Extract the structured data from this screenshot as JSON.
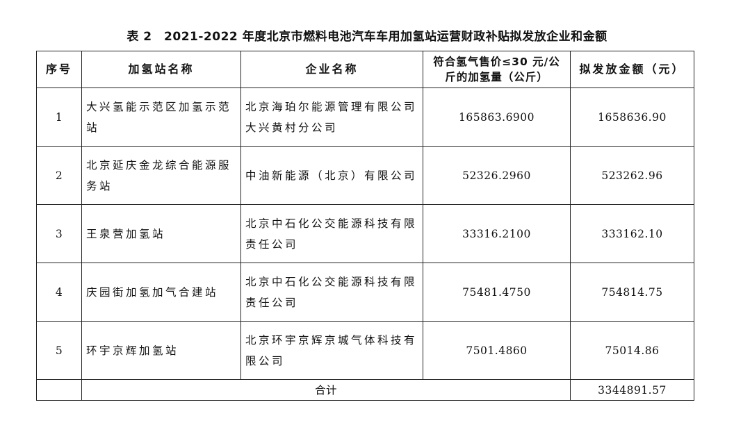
{
  "title": "表 2　2021-2022 年度北京市燃料电池汽车车用加氢站运营财政补贴拟发放企业和金额",
  "headers": [
    "序号",
    "加氢站名称",
    "企业名称",
    "符合氢气售价≤30 元/公斤的加氢量（公斤）",
    "拟发放金额（元）"
  ],
  "rows": [
    {
      "no": "1",
      "station": [
        "大兴氢能示范区加氢示范",
        "站"
      ],
      "company": [
        "北京海珀尔能源管理有限公司",
        "大兴黄村分公司"
      ],
      "hydrogen": "165863.6900",
      "amount": "1658636.90"
    },
    {
      "no": "2",
      "station": [
        "北京延庆金龙综合能源服",
        "务站"
      ],
      "company": [
        "中油新能源（北京）有限公司"
      ],
      "hydrogen": "52326.2960",
      "amount": "523262.96"
    },
    {
      "no": "3",
      "station": [
        "王泉营加氢站"
      ],
      "company": [
        "北京中石化公交能源科技有限",
        "责任公司"
      ],
      "hydrogen": "33316.2100",
      "amount": "333162.10"
    },
    {
      "no": "4",
      "station": [
        "庆园街加氢加气合建站"
      ],
      "company": [
        "北京中石化公交能源科技有限",
        "责任公司"
      ],
      "hydrogen": "75481.4750",
      "amount": "754814.75"
    },
    {
      "no": "5",
      "station": [
        "环宇京辉加氢站"
      ],
      "company": [
        "北京环宇京辉京城气体科技有",
        "限公司"
      ],
      "hydrogen": "7501.4860",
      "amount": "75014.86"
    }
  ],
  "total": {
    "label": "合计",
    "amount": "3344891.57"
  }
}
